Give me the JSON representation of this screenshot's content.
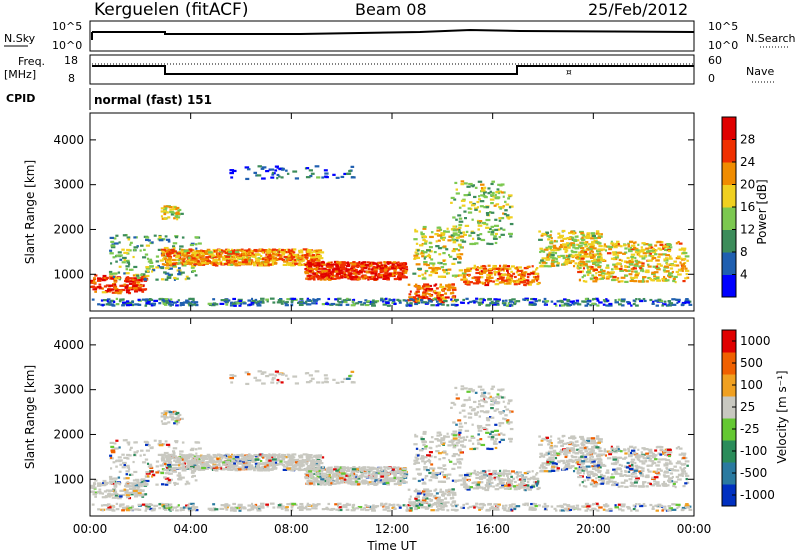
{
  "header": {
    "station": "Kerguelen (fitACF)",
    "beam": "Beam 08",
    "date": "25/Feb/2012"
  },
  "top_panel": {
    "left_label": "N.Sky",
    "right_label": "N.Search",
    "left_ticks": [
      "10^5",
      "10^0"
    ],
    "right_ticks": [
      "10^5",
      "10^0"
    ]
  },
  "freq_panel": {
    "left_label_1": "Freq.",
    "left_label_2": "[MHz]",
    "left_ticks": [
      "18",
      "8"
    ],
    "right_label": "Nave",
    "right_ticks": [
      "60",
      "0"
    ]
  },
  "cpid": {
    "label": "CPID",
    "value": "normal (fast) 151"
  },
  "colors": {
    "power_scale": [
      "#0000ff",
      "#1f5fb0",
      "#3c8c5a",
      "#7cc850",
      "#f0d020",
      "#f08c00",
      "#f03000",
      "#e00000"
    ],
    "velocity_scale": [
      "#0030c0",
      "#2a7aa0",
      "#2a8c5a",
      "#64c832",
      "#c8c8c0",
      "#f0a020",
      "#f06000",
      "#e00000"
    ],
    "ground_scatter": "#c8c8c0"
  },
  "chart_data": [
    {
      "type": "heatmap",
      "title": "Power",
      "ylabel": "Slant Range [km]",
      "xlabel": "",
      "ylim": [
        180,
        4600
      ],
      "y_ticks": [
        "1000",
        "2000",
        "3000",
        "4000"
      ],
      "colorbar_label": "Power [dB]",
      "colorbar_ticks": [
        "4",
        "8",
        "12",
        "16",
        "20",
        "24",
        "28"
      ],
      "grid": false
    },
    {
      "type": "heatmap",
      "title": "Velocity",
      "ylabel": "Slant Range [km]",
      "xlabel": "Time UT",
      "ylim": [
        180,
        4600
      ],
      "y_ticks": [
        "1000",
        "2000",
        "3000",
        "4000"
      ],
      "x_ticks": [
        "00:00",
        "04:00",
        "08:00",
        "12:00",
        "16:00",
        "20:00",
        "00:00"
      ],
      "colorbar_label": "Velocity [m s⁻¹]",
      "colorbar_ticks": [
        "1000",
        "500",
        "100",
        "25",
        "-25",
        "-100",
        "-500",
        "-1000"
      ],
      "grid": false
    }
  ]
}
